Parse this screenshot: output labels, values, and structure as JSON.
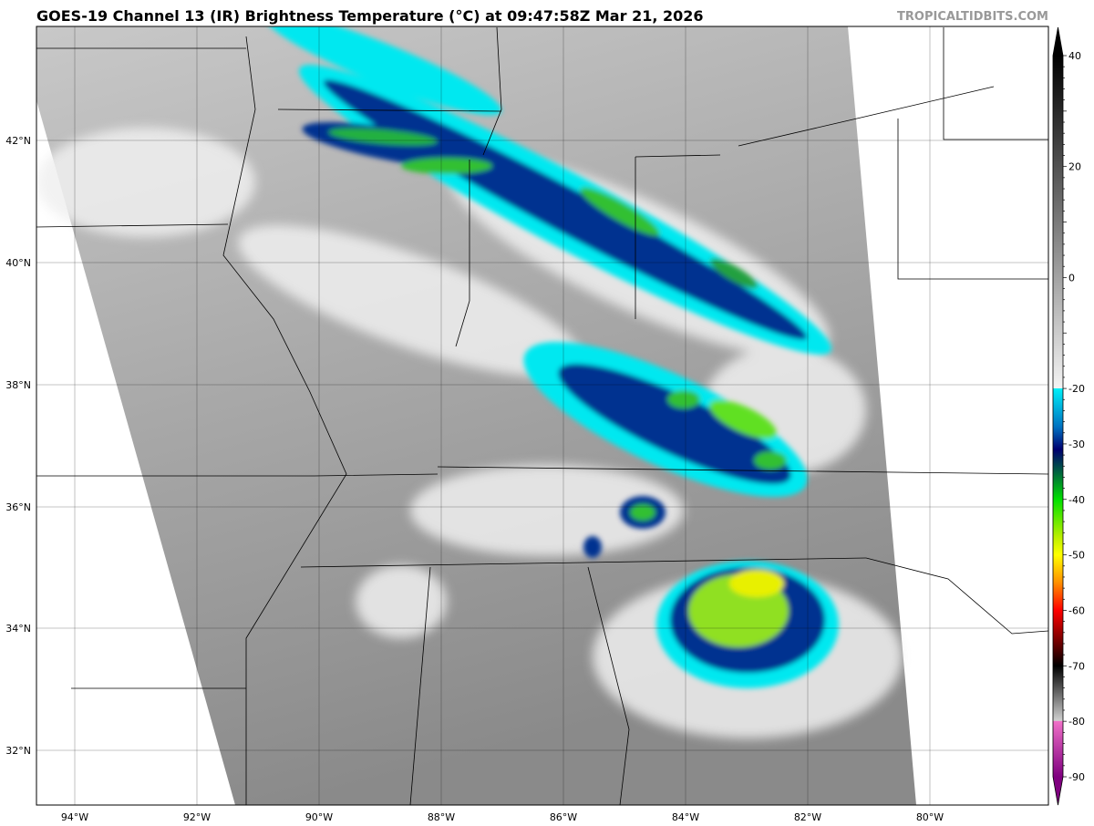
{
  "title": "GOES-19 Channel 13 (IR) Brightness Temperature (°C) at 09:47:58Z Mar 21, 2026",
  "credit": "TROPICALTIDBITS.COM",
  "map": {
    "lon_labels": [
      "94°W",
      "92°W",
      "90°W",
      "88°W",
      "86°W",
      "84°W",
      "82°W",
      "80°W"
    ],
    "lat_labels": [
      "42°N",
      "40°N",
      "38°N",
      "36°N",
      "34°N",
      "32°N"
    ],
    "gridlines": true
  },
  "colorbar": {
    "unit": "°C",
    "range": [
      -90,
      40
    ],
    "ticks": [
      "40",
      "20",
      "0",
      "-20",
      "-30",
      "-40",
      "-50",
      "-60",
      "-70",
      "-80",
      "-90"
    ],
    "extend": "both",
    "stops": [
      {
        "value": 40,
        "color": "#000000"
      },
      {
        "value": -20,
        "color": "#f4f4f4"
      },
      {
        "value": -20.01,
        "color": "#00f0f8"
      },
      {
        "value": -27,
        "color": "#0070c0"
      },
      {
        "value": -31,
        "color": "#000070"
      },
      {
        "value": -35,
        "color": "#006040"
      },
      {
        "value": -40,
        "color": "#00e000"
      },
      {
        "value": -47,
        "color": "#c0f000"
      },
      {
        "value": -50,
        "color": "#ffff00"
      },
      {
        "value": -55,
        "color": "#ff9000"
      },
      {
        "value": -60,
        "color": "#ff0000"
      },
      {
        "value": -67,
        "color": "#500000"
      },
      {
        "value": -70,
        "color": "#000000"
      },
      {
        "value": -79.9,
        "color": "#d0d0d0"
      },
      {
        "value": -80,
        "color": "#f070c8"
      },
      {
        "value": -90,
        "color": "#800080"
      }
    ]
  }
}
